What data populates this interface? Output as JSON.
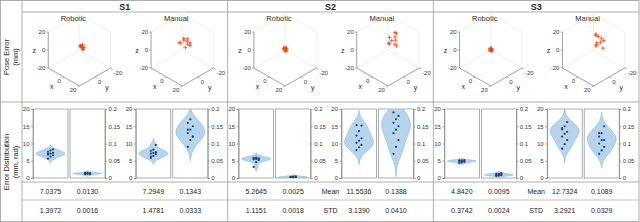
{
  "chart_data": {
    "type": "composite",
    "row_labels": [
      [
        "Pose Error",
        "(mm)"
      ],
      [
        "Error Distribution",
        "(mm, rad)"
      ]
    ],
    "stat_labels": [
      "Mean",
      "STD"
    ],
    "pose_axes": {
      "xlim": [
        -20,
        20
      ],
      "ylim": [
        -20,
        20
      ],
      "zlim": [
        -20,
        20
      ],
      "xticks": [
        0,
        20
      ],
      "yticks": [
        -20,
        0
      ],
      "zticks": [
        -20,
        0,
        20
      ],
      "xlabel": "x",
      "ylabel": "y",
      "zlabel": "z"
    },
    "position_axis": {
      "ylim": [
        0,
        20
      ],
      "yticks": [
        0,
        5,
        10,
        15,
        20
      ]
    },
    "rotation_axis": {
      "ylim": [
        0,
        0.2
      ],
      "yticks": [
        0,
        0.05,
        0.1,
        0.15,
        0.2
      ]
    },
    "groups": [
      {
        "title": "S1",
        "methods": [
          {
            "name": "Robotic",
            "pose": {
              "type": "scatter3d",
              "marker": "plus",
              "color": "#e8491d",
              "points": [
                [
                  1,
                  -2,
                  2
                ],
                [
                  2,
                  -1,
                  4
                ],
                [
                  0,
                  -3,
                  3
                ],
                [
                  3,
                  -2,
                  1
                ],
                [
                  1,
                  0,
                  5
                ],
                [
                  2,
                  -4,
                  2
                ],
                [
                  -1,
                  -2,
                  3
                ],
                [
                  3,
                  -1,
                  4
                ],
                [
                  1,
                  -3,
                  0
                ],
                [
                  2,
                  -2,
                  6
                ]
              ]
            },
            "position_error": {
              "type": "violin",
              "color": "#a9cde9",
              "values": [
                5.6,
                6.2,
                6.6,
                7.0,
                7.1,
                7.3,
                7.6,
                8.0,
                8.3,
                6.8
              ]
            },
            "rotation_error": {
              "type": "violin",
              "color": "#a9cde9",
              "values": [
                0.011,
                0.012,
                0.012,
                0.013,
                0.013,
                0.014,
                0.014,
                0.015,
                0.011,
                0.015
              ]
            },
            "mean": [
              "7.0375",
              "0.0130"
            ],
            "std": [
              "1.3972",
              "0.0016"
            ]
          },
          {
            "name": "Manual",
            "pose": {
              "type": "scatter3d",
              "marker": "plus",
              "color": "#e8491d",
              "points": [
                [
                  -2,
                  -4,
                  8
                ],
                [
                  0,
                  -2,
                  12
                ],
                [
                  1,
                  -6,
                  4
                ],
                [
                  3,
                  -3,
                  10
                ],
                [
                  -4,
                  0,
                  6
                ],
                [
                  2,
                  -8,
                  2
                ],
                [
                  5,
                  -2,
                  14
                ],
                [
                  -1,
                  -5,
                  0
                ],
                [
                  4,
                  -6,
                  7
                ],
                [
                  0,
                  2,
                  9
                ]
              ]
            },
            "position_error": {
              "type": "violin",
              "color": "#a9cde9",
              "values": [
                5.8,
                6.4,
                6.9,
                7.1,
                7.3,
                7.5,
                7.9,
                8.2,
                9.6,
                6.2
              ]
            },
            "rotation_error": {
              "type": "violin",
              "color": "#a9cde9",
              "values": [
                0.09,
                0.11,
                0.12,
                0.13,
                0.14,
                0.15,
                0.16,
                0.17,
                0.12,
                0.14
              ]
            },
            "mean": [
              "7.2949",
              "0.1343"
            ],
            "std": [
              "1.4781",
              "0.0333"
            ]
          }
        ]
      },
      {
        "title": "S2",
        "methods": [
          {
            "name": "Robotic",
            "pose": {
              "type": "scatter3d",
              "marker": "plus",
              "color": "#e8491d",
              "points": [
                [
                  0,
                  0,
                  1
                ],
                [
                  1,
                  -1,
                  2
                ],
                [
                  -1,
                  0,
                  0
                ],
                [
                  0,
                  1,
                  2
                ],
                [
                  1,
                  0,
                  -1
                ],
                [
                  0,
                  -1,
                  1
                ],
                [
                  2,
                  0,
                  1
                ],
                [
                  -1,
                  1,
                  2
                ],
                [
                  0,
                  0,
                  3
                ],
                [
                  1,
                  1,
                  0
                ]
              ]
            },
            "position_error": {
              "type": "violin",
              "color": "#a9cde9",
              "values": [
                3.2,
                4.6,
                5.2,
                5.4,
                5.5,
                5.6,
                5.8,
                5.9,
                5.6,
                5.8
              ]
            },
            "rotation_error": {
              "type": "violin",
              "color": "#a9cde9",
              "values": [
                0.001,
                0.001,
                0.002,
                0.002,
                0.002,
                0.003,
                0.003,
                0.004,
                0.005,
                0.002
              ]
            },
            "mean": [
              "5.2645",
              "0.0025"
            ],
            "std": [
              "1.1151",
              "0.0018"
            ]
          },
          {
            "name": "Manual",
            "pose": {
              "type": "scatter3d",
              "marker": "plus",
              "color": "#e8491d",
              "points": [
                [
                  2,
                  -3,
                  10
                ],
                [
                  4,
                  -5,
                  14
                ],
                [
                  0,
                  -2,
                  6
                ],
                [
                  6,
                  -4,
                  12
                ],
                [
                  3,
                  -8,
                  16
                ],
                [
                  1,
                  0,
                  8
                ],
                [
                  5,
                  -6,
                  4
                ],
                [
                  -2,
                  -4,
                  11
                ],
                [
                  7,
                  -2,
                  9
                ],
                [
                  3,
                  -6,
                  18
                ]
              ]
            },
            "position_error": {
              "type": "violin",
              "color": "#a9cde9",
              "values": [
                8.1,
                8.9,
                9.6,
                10.2,
                10.8,
                11.5,
                12.3,
                13.6,
                15.2,
                15.3
              ]
            },
            "rotation_error": {
              "type": "violin",
              "color": "#a9cde9",
              "values": [
                0.07,
                0.09,
                0.11,
                0.13,
                0.14,
                0.15,
                0.16,
                0.17,
                0.18,
                0.19
              ]
            },
            "mean": [
              "11.5536",
              "0.1388"
            ],
            "std": [
              "3.1390",
              "0.0410"
            ]
          }
        ]
      },
      {
        "title": "S3",
        "methods": [
          {
            "name": "Robotic",
            "pose": {
              "type": "scatter3d",
              "marker": "plus",
              "color": "#e8491d",
              "points": [
                [
                  0,
                  0,
                  0
                ],
                [
                  1,
                  0,
                  1
                ],
                [
                  0,
                  -1,
                  1
                ],
                [
                  1,
                  -1,
                  0
                ],
                [
                  0,
                  1,
                  0
                ],
                [
                  -1,
                  0,
                  1
                ],
                [
                  1,
                  1,
                  1
                ],
                [
                  0,
                  0,
                  2
                ],
                [
                  -1,
                  -1,
                  0
                ],
                [
                  1,
                  0,
                  -1
                ]
              ]
            },
            "position_error": {
              "type": "violin",
              "color": "#a9cde9",
              "values": [
                4.3,
                4.5,
                4.7,
                4.8,
                4.8,
                4.9,
                5.0,
                5.1,
                5.2,
                5.1
              ]
            },
            "rotation_error": {
              "type": "violin",
              "color": "#a9cde9",
              "values": [
                0.006,
                0.007,
                0.008,
                0.009,
                0.01,
                0.01,
                0.011,
                0.012,
                0.014,
                0.008
              ]
            },
            "mean": [
              "4.8420",
              "0.0095"
            ],
            "std": [
              "0.3742",
              "0.0024"
            ]
          },
          {
            "name": "Manual",
            "pose": {
              "type": "scatter3d",
              "marker": "plus",
              "color": "#e8491d",
              "points": [
                [
                  2,
                  -2,
                  8
                ],
                [
                  4,
                  -6,
                  12
                ],
                [
                  0,
                  -4,
                  4
                ],
                [
                  6,
                  -3,
                  10
                ],
                [
                  -2,
                  -5,
                  14
                ],
                [
                  3,
                  0,
                  6
                ],
                [
                  5,
                  -8,
                  9
                ],
                [
                  1,
                  -2,
                  16
                ],
                [
                  7,
                  -5,
                  3
                ],
                [
                  -1,
                  -7,
                  11
                ]
              ]
            },
            "position_error": {
              "type": "violin",
              "color": "#a9cde9",
              "values": [
                8.5,
                9.8,
                11.0,
                12.0,
                12.8,
                13.4,
                14.1,
                15.0,
                16.2,
                14.5
              ]
            },
            "rotation_error": {
              "type": "violin",
              "color": "#a9cde9",
              "values": [
                0.07,
                0.08,
                0.09,
                0.1,
                0.11,
                0.11,
                0.12,
                0.13,
                0.15,
                0.13
              ]
            },
            "mean": [
              "12.7324",
              "0.1089"
            ],
            "std": [
              "3.2921",
              "0.0329"
            ]
          }
        ]
      }
    ]
  }
}
